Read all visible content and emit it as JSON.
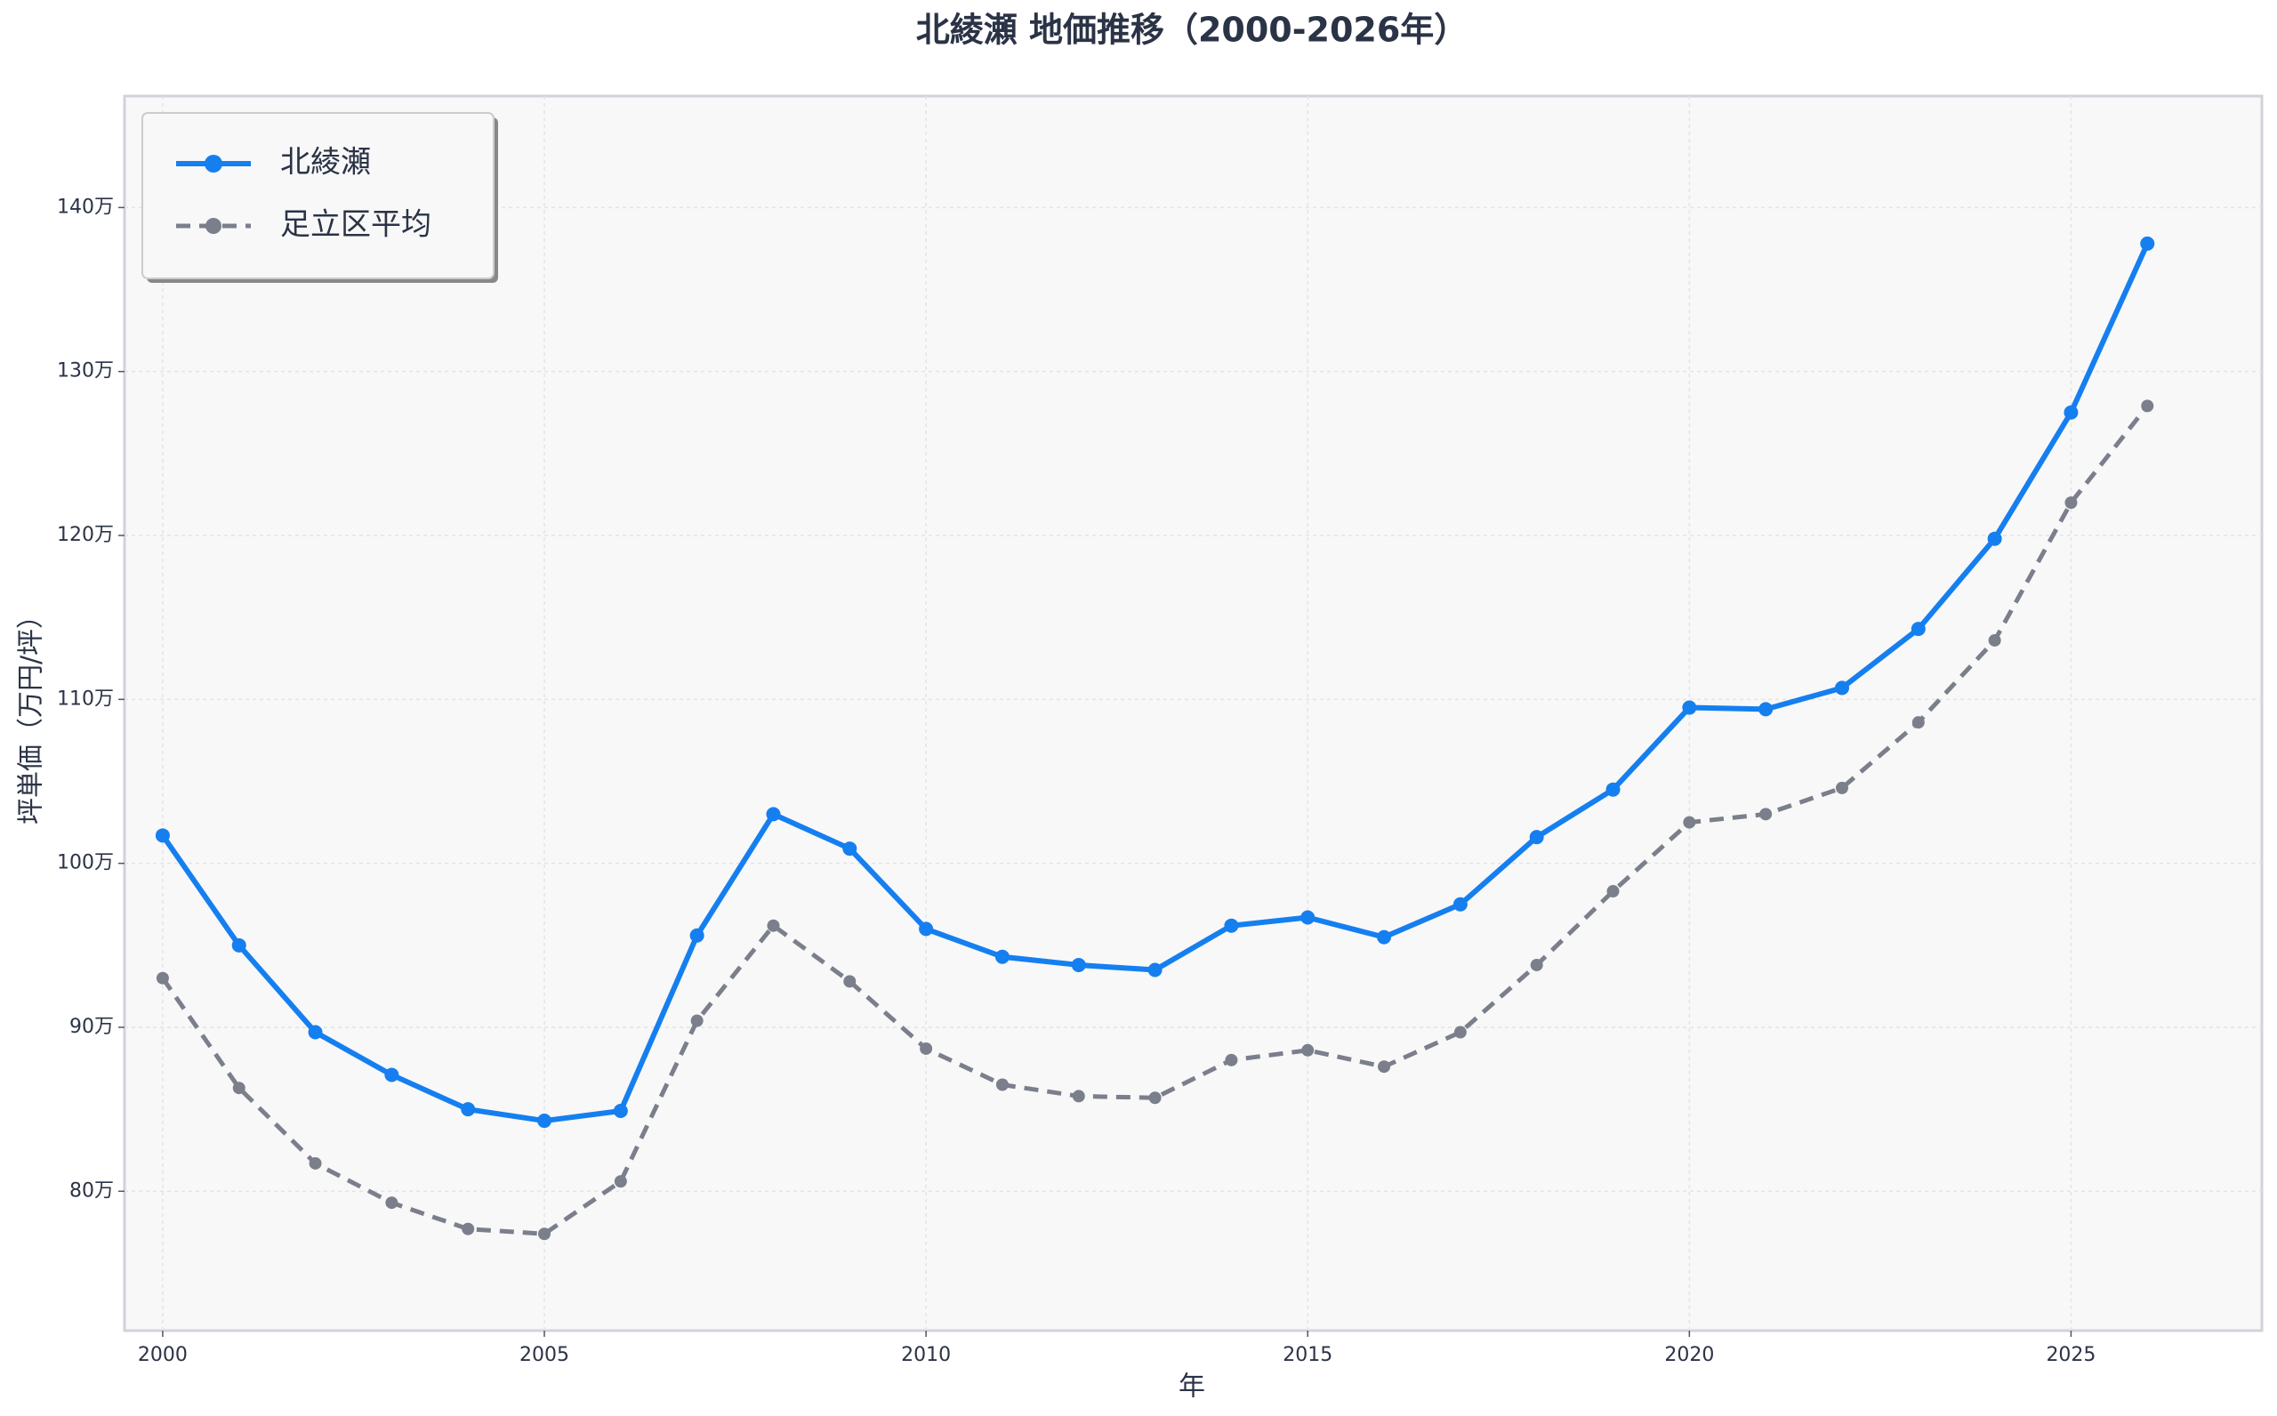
{
  "chart_data": {
    "type": "line",
    "title": "北綾瀬 地価推移（2000-2026年）",
    "x_label": "年",
    "y_label": "坪単価（万円/坪）",
    "x": [
      2000,
      2001,
      2002,
      2003,
      2004,
      2005,
      2006,
      2007,
      2008,
      2009,
      2010,
      2011,
      2012,
      2013,
      2014,
      2015,
      2016,
      2017,
      2018,
      2019,
      2020,
      2021,
      2022,
      2023,
      2024,
      2025,
      2026
    ],
    "series": [
      {
        "name": "北綾瀬",
        "color": "#157ff0",
        "linestyle": "solid",
        "values": [
          101.7,
          95.0,
          89.7,
          87.1,
          85.0,
          84.3,
          84.9,
          95.6,
          103.0,
          100.9,
          96.0,
          94.3,
          93.8,
          93.5,
          96.2,
          96.7,
          95.5,
          97.5,
          101.6,
          104.5,
          109.5,
          109.4,
          110.7,
          114.3,
          119.8,
          127.5,
          137.8
        ]
      },
      {
        "name": "足立区平均",
        "color": "#7b7f8c",
        "linestyle": "dashed",
        "values": [
          93.0,
          86.3,
          81.7,
          79.3,
          77.7,
          77.4,
          80.6,
          90.4,
          96.2,
          92.8,
          88.7,
          86.5,
          85.8,
          85.7,
          88.0,
          88.6,
          87.6,
          89.7,
          93.8,
          98.3,
          102.5,
          103.0,
          104.6,
          108.6,
          113.6,
          122.0,
          127.9
        ]
      }
    ],
    "xlim": [
      1999.5,
      2027.5
    ],
    "xticks": [
      2000,
      2005,
      2010,
      2015,
      2020,
      2025
    ],
    "ylim": [
      71.5,
      146.8
    ],
    "yticks": [
      {
        "value": 80,
        "label": "80万"
      },
      {
        "value": 90,
        "label": "90万"
      },
      {
        "value": 100,
        "label": "100万"
      },
      {
        "value": 110,
        "label": "110万"
      },
      {
        "value": 120,
        "label": "120万"
      },
      {
        "value": 130,
        "label": "130万"
      },
      {
        "value": 140,
        "label": "140万"
      }
    ],
    "grid": true,
    "legend": "upper-left"
  }
}
